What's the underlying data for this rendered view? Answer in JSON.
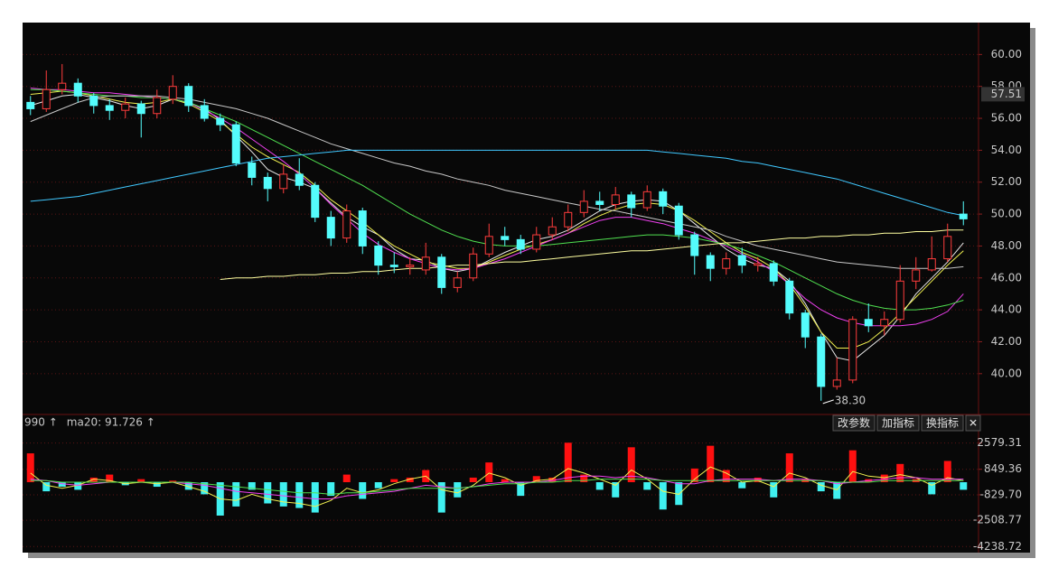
{
  "chart_data": [
    {
      "type": "candlestick",
      "up_color": "#ff3c3c",
      "down_color": "#54fcfc",
      "open": [
        57.0,
        56.6,
        57.8,
        58.2,
        57.4,
        56.8,
        56.5,
        56.9,
        56.3,
        57.2,
        58.0,
        56.8,
        56.0,
        55.6,
        53.2,
        52.3,
        51.6,
        52.5,
        51.8,
        49.8,
        48.5,
        50.2,
        48.0,
        46.8,
        46.7,
        46.5,
        47.3,
        45.4,
        46.0,
        47.5,
        48.6,
        48.4,
        47.8,
        48.7,
        49.2,
        50.1,
        50.8,
        50.6,
        51.2,
        50.4,
        51.4,
        50.5,
        48.7,
        47.4,
        46.6,
        47.4,
        46.8,
        46.9,
        45.8,
        43.8,
        42.3,
        39.2,
        39.6,
        43.4,
        43.0,
        43.4,
        45.8,
        46.5,
        47.2,
        50.0
      ],
      "high": [
        57.4,
        59.0,
        59.4,
        58.5,
        57.6,
        57.2,
        57.3,
        57.1,
        57.8,
        58.7,
        58.2,
        57.2,
        56.3,
        55.8,
        53.6,
        52.6,
        53.1,
        53.5,
        52.0,
        50.2,
        50.6,
        50.4,
        48.3,
        47.6,
        47.3,
        48.2,
        47.5,
        46.4,
        47.9,
        49.4,
        49.2,
        48.7,
        49.2,
        49.8,
        50.6,
        51.5,
        51.4,
        51.7,
        51.4,
        51.8,
        51.6,
        50.7,
        48.9,
        47.6,
        47.6,
        47.9,
        47.3,
        47.1,
        46.0,
        44.0,
        42.5,
        41.0,
        43.6,
        44.4,
        43.9,
        46.8,
        47.3,
        48.6,
        49.4,
        50.8
      ],
      "low": [
        56.2,
        56.4,
        57.5,
        57.0,
        56.3,
        55.9,
        56.0,
        54.8,
        56.0,
        56.9,
        56.4,
        55.8,
        55.2,
        53.0,
        51.8,
        50.8,
        51.3,
        51.5,
        49.5,
        48.0,
        48.2,
        47.5,
        46.2,
        46.3,
        46.2,
        46.2,
        45.0,
        45.1,
        45.8,
        47.3,
        48.0,
        47.5,
        47.6,
        48.4,
        48.9,
        49.8,
        50.2,
        50.3,
        49.8,
        50.2,
        50.0,
        48.4,
        46.2,
        45.8,
        46.2,
        46.3,
        46.4,
        45.5,
        43.4,
        41.6,
        38.3,
        39.0,
        39.4,
        42.6,
        42.4,
        43.2,
        45.3,
        46.4,
        47.0,
        49.3
      ],
      "close": [
        56.6,
        57.8,
        58.2,
        57.4,
        56.8,
        56.5,
        56.9,
        56.3,
        57.3,
        58.0,
        56.8,
        56.0,
        55.6,
        53.2,
        52.3,
        51.6,
        52.5,
        51.8,
        49.8,
        48.5,
        50.2,
        48.0,
        46.8,
        46.7,
        46.8,
        47.3,
        45.4,
        46.0,
        47.5,
        48.6,
        48.4,
        47.8,
        48.7,
        49.2,
        50.1,
        50.8,
        50.6,
        51.2,
        50.4,
        51.4,
        50.5,
        48.7,
        47.4,
        46.6,
        47.2,
        46.8,
        46.9,
        45.8,
        43.8,
        42.3,
        39.2,
        39.6,
        43.4,
        43.0,
        43.4,
        45.8,
        46.5,
        47.2,
        48.6,
        49.7
      ],
      "lines": [
        {
          "color": "#e8e8e8",
          "values": [
            56.8,
            57.1,
            57.4,
            57.5,
            57.3,
            57.1,
            56.8,
            56.6,
            56.8,
            57.2,
            57.0,
            56.6,
            55.9,
            54.9,
            53.9,
            52.8,
            52.3,
            52.0,
            51.6,
            50.7,
            49.8,
            49.2,
            48.7,
            47.8,
            47.2,
            47.1,
            46.6,
            46.4,
            46.6,
            47.1,
            47.6,
            48.0,
            48.4,
            48.6,
            49.0,
            49.6,
            50.2,
            50.6,
            50.8,
            50.9,
            50.8,
            50.2,
            49.4,
            48.6,
            47.8,
            47.2,
            46.8,
            46.6,
            45.8,
            44.4,
            42.6,
            41.0,
            40.8,
            41.6,
            42.4,
            43.6,
            45.0,
            46.0,
            47.0,
            48.2
          ]
        },
        {
          "color": "#f0f050",
          "values": [
            57.5,
            57.6,
            57.7,
            57.6,
            57.4,
            57.2,
            57.0,
            56.9,
            57.0,
            57.2,
            56.9,
            56.4,
            55.8,
            55.0,
            54.2,
            53.6,
            53.1,
            52.6,
            51.8,
            50.9,
            50.2,
            49.5,
            48.7,
            48.0,
            47.5,
            47.0,
            46.8,
            46.6,
            46.6,
            47.0,
            47.4,
            47.8,
            48.1,
            48.4,
            48.8,
            49.4,
            49.9,
            50.3,
            50.6,
            50.7,
            50.6,
            50.2,
            49.6,
            48.9,
            48.2,
            47.6,
            47.2,
            46.6,
            45.6,
            44.2,
            42.6,
            41.6,
            41.6,
            42.0,
            42.8,
            43.8,
            44.8,
            45.8,
            46.8,
            47.7
          ]
        },
        {
          "color": "#f040f0",
          "values": [
            57.9,
            57.8,
            57.8,
            57.7,
            57.6,
            57.6,
            57.5,
            57.4,
            57.3,
            57.2,
            57.0,
            56.5,
            56.0,
            55.4,
            54.7,
            54.0,
            53.3,
            52.5,
            51.6,
            50.6,
            49.7,
            48.8,
            48.1,
            47.6,
            47.2,
            46.9,
            46.6,
            46.5,
            46.6,
            46.9,
            47.2,
            47.6,
            48.0,
            48.4,
            48.8,
            49.2,
            49.6,
            49.8,
            49.8,
            49.6,
            49.4,
            49.1,
            48.8,
            48.4,
            48.0,
            47.5,
            47.0,
            46.4,
            45.6,
            44.7,
            44.0,
            43.5,
            43.2,
            43.0,
            43.0,
            43.0,
            43.1,
            43.4,
            43.9,
            45.0
          ]
        },
        {
          "color": "#50e050",
          "values": [
            57.8,
            57.8,
            57.7,
            57.6,
            57.5,
            57.4,
            57.4,
            57.3,
            57.3,
            57.2,
            57.0,
            56.6,
            56.2,
            55.8,
            55.3,
            54.8,
            54.3,
            53.8,
            53.3,
            52.8,
            52.3,
            51.8,
            51.2,
            50.6,
            50.0,
            49.5,
            49.0,
            48.6,
            48.3,
            48.1,
            48.0,
            48.0,
            48.0,
            48.1,
            48.2,
            48.3,
            48.4,
            48.5,
            48.6,
            48.7,
            48.7,
            48.6,
            48.5,
            48.3,
            48.1,
            47.8,
            47.4,
            47.0,
            46.5,
            46.0,
            45.5,
            45.0,
            44.6,
            44.3,
            44.1,
            44.0,
            44.0,
            44.1,
            44.3,
            44.6
          ]
        },
        {
          "color": "#c8c8c8",
          "values": [
            55.8,
            56.2,
            56.6,
            57.0,
            57.3,
            57.4,
            57.4,
            57.4,
            57.4,
            57.3,
            57.2,
            57.0,
            56.8,
            56.6,
            56.3,
            56.0,
            55.6,
            55.2,
            54.8,
            54.4,
            54.1,
            53.8,
            53.5,
            53.2,
            53.0,
            52.7,
            52.5,
            52.2,
            52.0,
            51.8,
            51.5,
            51.3,
            51.1,
            50.9,
            50.7,
            50.5,
            50.3,
            50.2,
            50.0,
            49.8,
            49.6,
            49.4,
            49.2,
            49.0,
            48.6,
            48.3,
            48.0,
            47.8,
            47.6,
            47.4,
            47.2,
            47.0,
            46.9,
            46.8,
            46.7,
            46.6,
            46.6,
            46.6,
            46.6,
            46.7
          ]
        },
        {
          "color": "#40c8ff",
          "values": [
            50.8,
            50.9,
            51.0,
            51.1,
            51.3,
            51.5,
            51.7,
            51.9,
            52.1,
            52.3,
            52.5,
            52.7,
            52.9,
            53.1,
            53.3,
            53.5,
            53.6,
            53.7,
            53.8,
            53.9,
            54.0,
            54.0,
            54.0,
            54.0,
            54.0,
            54.0,
            54.0,
            54.0,
            54.0,
            54.0,
            54.0,
            54.0,
            54.0,
            54.0,
            54.0,
            54.0,
            54.0,
            54.0,
            54.0,
            54.0,
            53.9,
            53.8,
            53.7,
            53.6,
            53.5,
            53.3,
            53.2,
            53.0,
            52.8,
            52.6,
            52.4,
            52.2,
            51.9,
            51.6,
            51.3,
            51.0,
            50.7,
            50.4,
            50.1,
            49.9
          ]
        },
        {
          "color": "#ffffa0",
          "values": [
            null,
            null,
            null,
            null,
            null,
            null,
            null,
            null,
            null,
            null,
            null,
            null,
            45.9,
            46.0,
            46.0,
            46.1,
            46.1,
            46.2,
            46.2,
            46.3,
            46.3,
            46.4,
            46.4,
            46.5,
            46.6,
            46.6,
            46.7,
            46.8,
            46.8,
            46.9,
            47.0,
            47.0,
            47.1,
            47.2,
            47.3,
            47.4,
            47.5,
            47.6,
            47.7,
            47.7,
            47.8,
            47.9,
            48.0,
            48.1,
            48.2,
            48.2,
            48.3,
            48.4,
            48.5,
            48.5,
            48.6,
            48.6,
            48.7,
            48.7,
            48.8,
            48.8,
            48.9,
            48.9,
            49.0,
            49.0
          ]
        }
      ],
      "ylim": [
        37.5,
        62.0
      ],
      "yticks": [
        {
          "value": 40,
          "label": "40.00"
        },
        {
          "value": 42,
          "label": "42.00"
        },
        {
          "value": 44,
          "label": "44.00"
        },
        {
          "value": 46,
          "label": "46.00"
        },
        {
          "value": 48,
          "label": "48.00"
        },
        {
          "value": 50,
          "label": "50.00"
        },
        {
          "value": 52,
          "label": "52.00"
        },
        {
          "value": 54,
          "label": "54.00"
        },
        {
          "value": 56,
          "label": "56.00"
        },
        {
          "value": 58,
          "label": "58.00"
        },
        {
          "value": 60,
          "label": "60.00"
        }
      ],
      "grid": true,
      "last_price": 57.51,
      "low_annotation": {
        "value": 38.3,
        "label": "38.30"
      }
    },
    {
      "type": "bar",
      "legend": [
        {
          "text": "990 ↑",
          "color": "#f040f0"
        },
        {
          "text": "ma20: 91.726 ↑",
          "color": "#50e050"
        }
      ],
      "up_color": "#ff1010",
      "down_color": "#40f0f0",
      "values": [
        1900,
        -600,
        -300,
        -500,
        300,
        500,
        -200,
        200,
        -300,
        100,
        -500,
        -800,
        -2200,
        -1600,
        -500,
        -1400,
        -1600,
        -1700,
        -2000,
        -900,
        500,
        -1100,
        -400,
        200,
        300,
        800,
        -2000,
        -1000,
        300,
        1300,
        200,
        -900,
        400,
        300,
        2600,
        500,
        -500,
        -1000,
        2300,
        -500,
        -1800,
        -1500,
        900,
        2400,
        800,
        -400,
        300,
        -1000,
        1900,
        200,
        -600,
        -1100,
        2100,
        200,
        500,
        1200,
        200,
        -800,
        1400,
        -500
      ],
      "lines": [
        {
          "color": "#f0f050",
          "values": [
            600,
            -200,
            -400,
            -200,
            200,
            100,
            -100,
            0,
            -100,
            0,
            -300,
            -600,
            -1100,
            -1200,
            -800,
            -1100,
            -1300,
            -1400,
            -1600,
            -1200,
            -400,
            -700,
            -500,
            -100,
            200,
            400,
            -500,
            -700,
            -200,
            600,
            300,
            -200,
            100,
            200,
            900,
            600,
            200,
            -200,
            800,
            200,
            -600,
            -800,
            200,
            1000,
            600,
            0,
            100,
            -300,
            600,
            300,
            -200,
            -500,
            700,
            400,
            300,
            500,
            300,
            -200,
            300,
            100
          ]
        },
        {
          "color": "#f040f0",
          "values": [
            200,
            100,
            -100,
            -200,
            -100,
            0,
            0,
            0,
            0,
            0,
            -100,
            -200,
            -400,
            -600,
            -700,
            -800,
            -900,
            -1000,
            -1100,
            -1100,
            -900,
            -800,
            -700,
            -600,
            -400,
            -200,
            -300,
            -400,
            -300,
            -100,
            0,
            0,
            0,
            100,
            300,
            400,
            400,
            300,
            400,
            300,
            100,
            -100,
            -100,
            100,
            200,
            200,
            200,
            100,
            200,
            200,
            100,
            -100,
            0,
            100,
            200,
            300,
            300,
            200,
            200,
            200
          ]
        },
        {
          "color": "#50e050",
          "values": [
            100,
            100,
            0,
            0,
            0,
            0,
            0,
            0,
            0,
            0,
            0,
            -100,
            -200,
            -300,
            -400,
            -500,
            -600,
            -700,
            -700,
            -800,
            -700,
            -700,
            -600,
            -500,
            -400,
            -400,
            -400,
            -400,
            -300,
            -200,
            -100,
            -100,
            0,
            0,
            100,
            100,
            200,
            200,
            200,
            200,
            100,
            100,
            100,
            100,
            100,
            100,
            100,
            100,
            100,
            100,
            100,
            0,
            0,
            0,
            100,
            100,
            100,
            100,
            100,
            100
          ]
        }
      ],
      "ylim": [
        -4640,
        3450
      ],
      "yticks": [
        2579.31,
        849.36,
        {
          "value": -829.7,
          "label": "-829.70"
        },
        -2508.77,
        -4238.72
      ],
      "grid": true
    }
  ],
  "toolbar": {
    "buttons": [
      "改参数",
      "加指标",
      "换指标",
      "✕"
    ]
  }
}
